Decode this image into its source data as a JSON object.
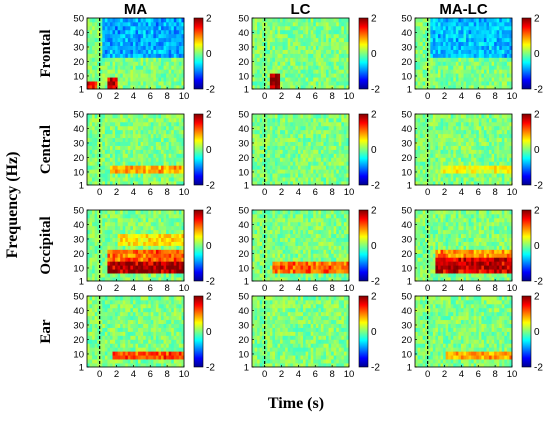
{
  "chart_data": {
    "type": "heatmap",
    "description_columns": [
      "MA",
      "LC",
      "MA-LC"
    ],
    "rows": [
      "Frontal",
      "Central",
      "Occipital",
      "Ear"
    ],
    "xlabel": "Time (s)",
    "ylabel": "Frequency (Hz)",
    "xlim": [
      -1.5,
      10
    ],
    "ylim": [
      1,
      50
    ],
    "xticks": [
      "0",
      "2",
      "4",
      "6",
      "8",
      "10"
    ],
    "yticks": [
      "1",
      "10",
      "20",
      "30",
      "40",
      "50"
    ],
    "event_marker_x": 0,
    "colorbar": {
      "min": -2,
      "max": 2,
      "ticks": [
        "2",
        "0",
        "-2"
      ],
      "colormap": "jet"
    },
    "panels": [
      {
        "col": "MA",
        "row": "Frontal",
        "features": [
          {
            "t0": 0.8,
            "t1": 2.2,
            "f0": 1,
            "f1": 10,
            "value": 1.8
          },
          {
            "t0": -1.5,
            "t1": -0.4,
            "f0": 1,
            "f1": 7,
            "value": 1.6
          },
          {
            "t0": 0.2,
            "t1": 10,
            "f0": 22,
            "f1": 50,
            "value": -0.9
          }
        ]
      },
      {
        "col": "MA",
        "row": "Central",
        "features": [
          {
            "t0": 1.2,
            "t1": 10,
            "f0": 8,
            "f1": 14,
            "value": 0.9
          }
        ]
      },
      {
        "col": "MA",
        "row": "Occipital",
        "features": [
          {
            "t0": 1.0,
            "t1": 10,
            "f0": 6,
            "f1": 15,
            "value": 2.0
          },
          {
            "t0": 1.0,
            "t1": 10,
            "f0": 15,
            "f1": 24,
            "value": 1.2
          },
          {
            "t0": 2.0,
            "t1": 10,
            "f0": 25,
            "f1": 35,
            "value": 0.6
          }
        ]
      },
      {
        "col": "MA",
        "row": "Ear",
        "features": [
          {
            "t0": 1.5,
            "t1": 10,
            "f0": 7,
            "f1": 13,
            "value": 1.3
          }
        ]
      },
      {
        "col": "LC",
        "row": "Frontal",
        "features": [
          {
            "t0": 0.6,
            "t1": 1.8,
            "f0": 1,
            "f1": 13,
            "value": 2.0
          }
        ]
      },
      {
        "col": "LC",
        "row": "Central",
        "features": []
      },
      {
        "col": "LC",
        "row": "Occipital",
        "features": [
          {
            "t0": 1.0,
            "t1": 10,
            "f0": 7,
            "f1": 14,
            "value": 1.2
          }
        ]
      },
      {
        "col": "LC",
        "row": "Ear",
        "features": []
      },
      {
        "col": "MA-LC",
        "row": "Frontal",
        "features": [
          {
            "t0": 0.2,
            "t1": 10,
            "f0": 22,
            "f1": 50,
            "value": -0.8
          }
        ]
      },
      {
        "col": "MA-LC",
        "row": "Central",
        "features": [
          {
            "t0": 1.5,
            "t1": 10,
            "f0": 8,
            "f1": 14,
            "value": 0.5
          }
        ]
      },
      {
        "col": "MA-LC",
        "row": "Occipital",
        "features": [
          {
            "t0": 1.0,
            "t1": 10,
            "f0": 7,
            "f1": 16,
            "value": 1.9
          },
          {
            "t0": 1.0,
            "t1": 10,
            "f0": 16,
            "f1": 24,
            "value": 1.0
          }
        ]
      },
      {
        "col": "MA-LC",
        "row": "Ear",
        "features": [
          {
            "t0": 2.0,
            "t1": 10,
            "f0": 7,
            "f1": 12,
            "value": 0.9
          }
        ]
      }
    ]
  }
}
